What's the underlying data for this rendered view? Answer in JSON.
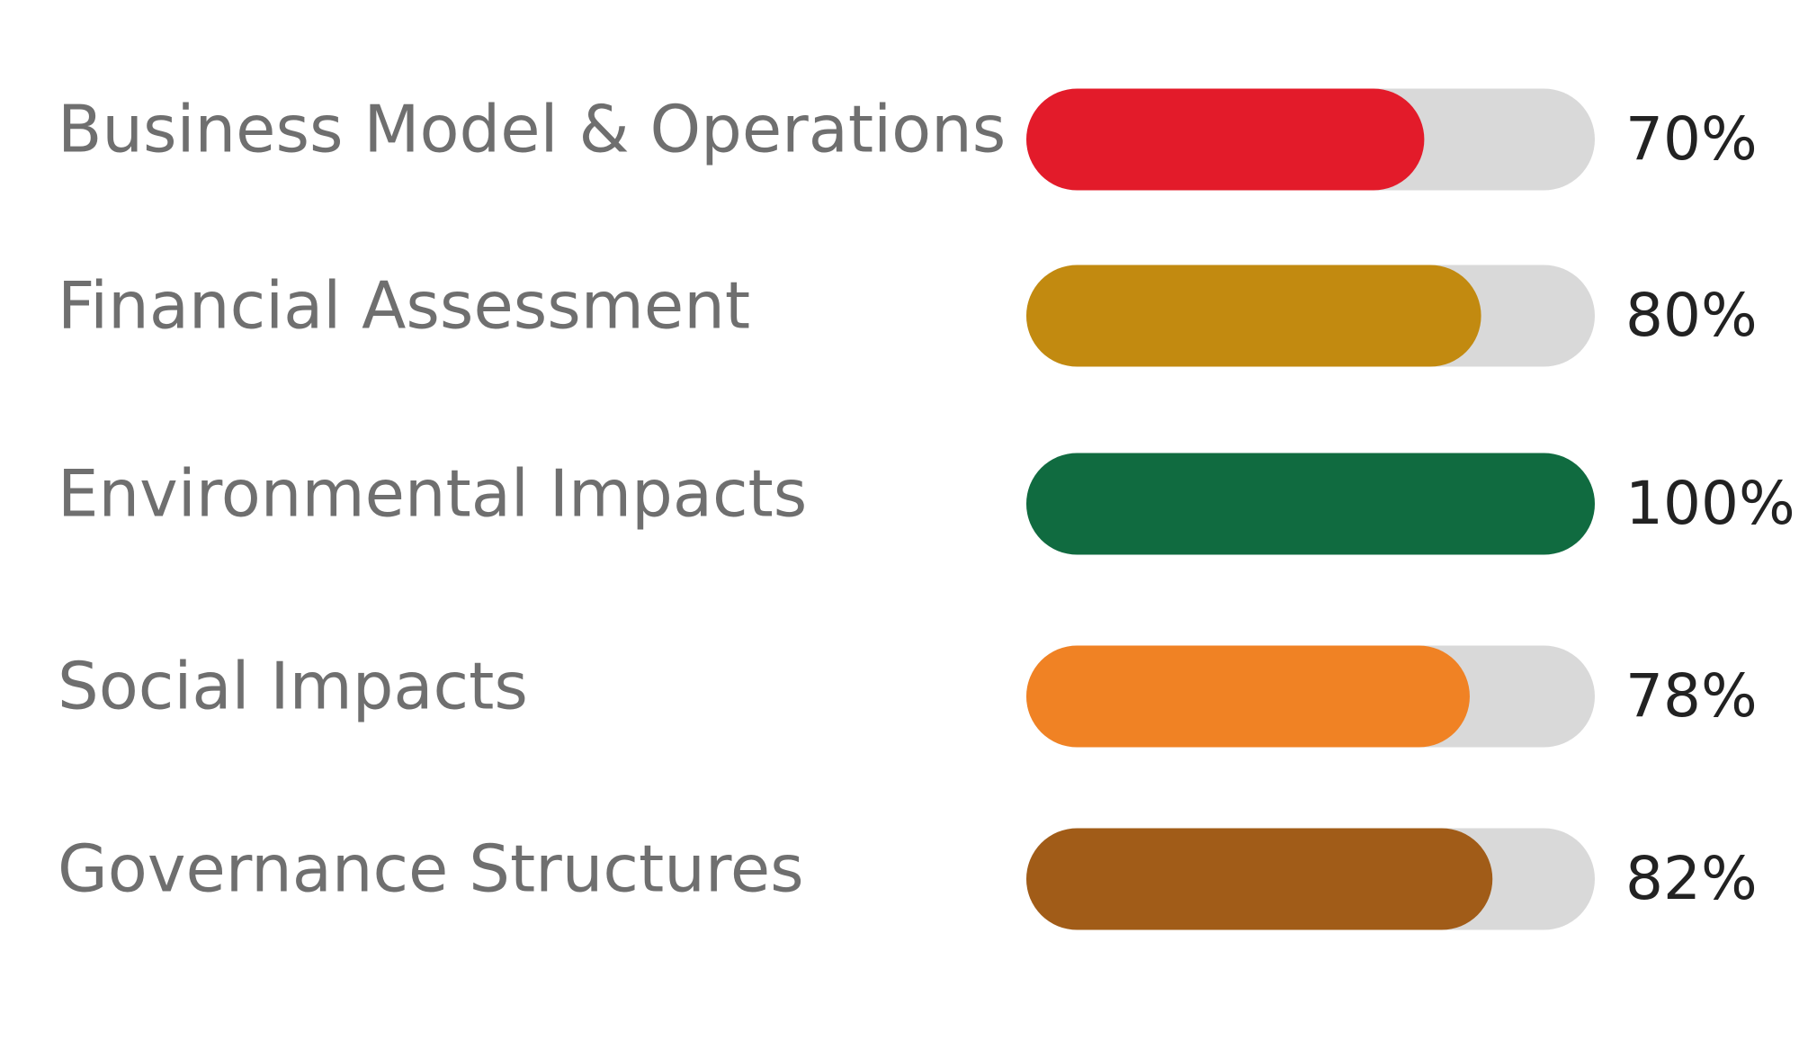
{
  "chart_data": {
    "type": "progress",
    "categories": [
      "Business Model & Operations",
      "Financial Assessment",
      "Environmental Impacts",
      "Social Impacts",
      "Governance Structures"
    ],
    "values": [
      70,
      80,
      100,
      78,
      82
    ],
    "value_labels": [
      "70%",
      "80%",
      "100%",
      "78%",
      "82%"
    ],
    "colors": [
      "#e31b2a",
      "#c28a10",
      "#106b40",
      "#f08224",
      "#a15c18"
    ],
    "track_color": "#d9d9d9",
    "xlim": [
      0,
      100
    ]
  }
}
